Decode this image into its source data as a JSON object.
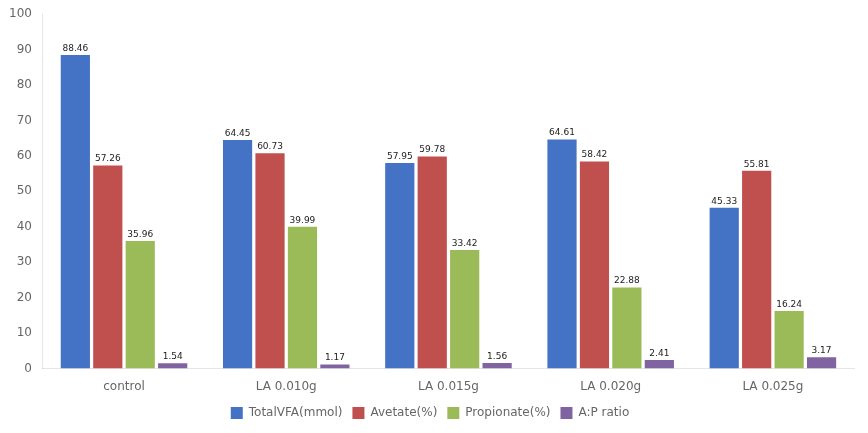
{
  "chart_data": {
    "type": "bar",
    "categories": [
      "control",
      "LA 0.010g",
      "LA 0.015g",
      "LA 0.020g",
      "LA 0.025g"
    ],
    "series": [
      {
        "name": "TotalVFA(mmol)",
        "values": [
          88.46,
          64.45,
          57.95,
          64.61,
          45.33
        ],
        "color": "#4472C4"
      },
      {
        "name": "Avetate(%)",
        "values": [
          57.26,
          60.73,
          59.78,
          58.42,
          55.81
        ],
        "color": "#C0504D"
      },
      {
        "name": "Propionate(%)",
        "values": [
          35.96,
          39.99,
          33.42,
          22.88,
          16.24
        ],
        "color": "#9BBB59"
      },
      {
        "name": "A:P ratio",
        "values": [
          1.54,
          1.17,
          1.56,
          2.41,
          3.17
        ],
        "color": "#8064A2"
      }
    ],
    "ylim": [
      0,
      100
    ],
    "yticks": [
      0,
      10,
      20,
      30,
      40,
      50,
      60,
      70,
      80,
      90,
      100
    ],
    "grid": false,
    "legend": "bottom",
    "data_labels": true
  }
}
